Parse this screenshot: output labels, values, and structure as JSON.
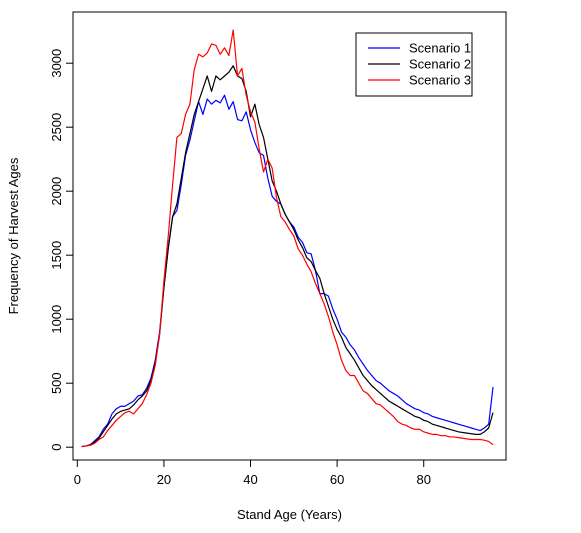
{
  "chart_data": {
    "type": "line",
    "title": "",
    "xlabel": "Stand Age (Years)",
    "ylabel": "Frequency of Harvest Ages",
    "xlim": [
      -1,
      99
    ],
    "ylim": [
      -100,
      3400
    ],
    "x_ticks": [
      0,
      20,
      40,
      60,
      80
    ],
    "y_ticks": [
      0,
      500,
      1000,
      1500,
      2000,
      2500,
      3000
    ],
    "grid": false,
    "legend_position": "top-right",
    "x": [
      1,
      2,
      3,
      4,
      5,
      6,
      7,
      8,
      9,
      10,
      11,
      12,
      13,
      14,
      15,
      16,
      17,
      18,
      19,
      20,
      21,
      22,
      23,
      24,
      25,
      26,
      27,
      28,
      29,
      30,
      31,
      32,
      33,
      34,
      35,
      36,
      37,
      38,
      39,
      40,
      41,
      42,
      43,
      44,
      45,
      46,
      47,
      48,
      49,
      50,
      51,
      52,
      53,
      54,
      55,
      56,
      57,
      58,
      59,
      60,
      61,
      62,
      63,
      64,
      65,
      66,
      67,
      68,
      69,
      70,
      71,
      72,
      73,
      74,
      75,
      76,
      77,
      78,
      79,
      80,
      81,
      82,
      83,
      84,
      85,
      86,
      87,
      88,
      89,
      90,
      91,
      92,
      93,
      94,
      95,
      96
    ],
    "series": [
      {
        "name": "Scenario 1",
        "color": "#0000ff",
        "values": [
          5,
          10,
          20,
          50,
          80,
          140,
          180,
          260,
          300,
          320,
          320,
          340,
          360,
          400,
          410,
          460,
          540,
          680,
          900,
          1250,
          1560,
          1800,
          1850,
          2050,
          2280,
          2400,
          2550,
          2700,
          2600,
          2720,
          2680,
          2710,
          2690,
          2750,
          2640,
          2700,
          2560,
          2550,
          2620,
          2480,
          2380,
          2300,
          2280,
          2100,
          1960,
          1920,
          1900,
          1820,
          1760,
          1720,
          1640,
          1600,
          1520,
          1510,
          1380,
          1200,
          1200,
          1180,
          1080,
          1000,
          900,
          860,
          800,
          760,
          700,
          650,
          600,
          560,
          520,
          500,
          470,
          440,
          420,
          400,
          370,
          340,
          320,
          300,
          290,
          270,
          260,
          240,
          230,
          220,
          210,
          200,
          190,
          180,
          170,
          160,
          150,
          140,
          130,
          150,
          180,
          470
        ]
      },
      {
        "name": "Scenario 2",
        "color": "#000000",
        "values": [
          5,
          10,
          20,
          40,
          70,
          120,
          170,
          220,
          260,
          280,
          290,
          300,
          330,
          370,
          400,
          440,
          520,
          660,
          880,
          1250,
          1550,
          1800,
          1900,
          2100,
          2300,
          2450,
          2600,
          2700,
          2800,
          2900,
          2780,
          2900,
          2870,
          2900,
          2930,
          2980,
          2900,
          2880,
          2780,
          2580,
          2680,
          2520,
          2420,
          2250,
          2080,
          2000,
          1900,
          1820,
          1760,
          1700,
          1620,
          1560,
          1480,
          1450,
          1380,
          1320,
          1200,
          1100,
          1000,
          920,
          860,
          780,
          730,
          680,
          620,
          560,
          520,
          480,
          450,
          420,
          390,
          360,
          340,
          320,
          300,
          280,
          260,
          240,
          230,
          210,
          200,
          180,
          170,
          160,
          150,
          140,
          130,
          120,
          115,
          110,
          105,
          100,
          100,
          120,
          150,
          270
        ]
      },
      {
        "name": "Scenario 3",
        "color": "#ff0000",
        "values": [
          5,
          10,
          15,
          30,
          60,
          80,
          130,
          170,
          210,
          240,
          270,
          280,
          260,
          300,
          340,
          410,
          500,
          640,
          880,
          1300,
          1650,
          2050,
          2420,
          2450,
          2600,
          2680,
          2950,
          3070,
          3050,
          3080,
          3150,
          3140,
          3070,
          3120,
          3060,
          3260,
          2900,
          2960,
          2750,
          2620,
          2540,
          2330,
          2150,
          2250,
          2180,
          1950,
          1800,
          1760,
          1700,
          1650,
          1550,
          1500,
          1430,
          1370,
          1280,
          1200,
          1120,
          1020,
          900,
          800,
          680,
          600,
          560,
          560,
          500,
          440,
          420,
          380,
          340,
          330,
          300,
          270,
          240,
          200,
          180,
          170,
          150,
          140,
          140,
          120,
          110,
          100,
          100,
          90,
          90,
          80,
          80,
          75,
          70,
          65,
          60,
          60,
          60,
          55,
          45,
          20
        ]
      }
    ]
  }
}
